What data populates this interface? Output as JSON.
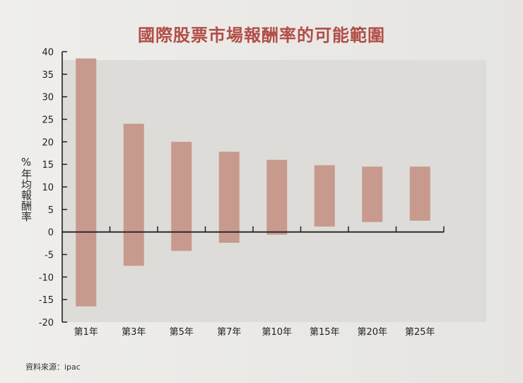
{
  "chart_data": {
    "type": "bar",
    "subtype": "floating-range",
    "title": "國際股票市場報酬率的可能範圍",
    "ylabel": "%年均報酬率",
    "ylim": [
      -20,
      40
    ],
    "yticks": [
      40,
      35,
      30,
      25,
      20,
      15,
      10,
      5,
      0,
      -5,
      -10,
      -15,
      -20
    ],
    "categories": [
      "第1年",
      "第3年",
      "第5年",
      "第7年",
      "第10年",
      "第15年",
      "第20年",
      "第25年"
    ],
    "ranges": [
      {
        "low": -16.5,
        "high": 38.5
      },
      {
        "low": -7.5,
        "high": 24
      },
      {
        "low": -4.2,
        "high": 20
      },
      {
        "low": -2.4,
        "high": 17.8
      },
      {
        "low": -0.6,
        "high": 16
      },
      {
        "low": 1.2,
        "high": 14.8
      },
      {
        "low": 2.2,
        "high": 14.5
      },
      {
        "low": 2.5,
        "high": 14.5
      }
    ],
    "bar_color": "#c79a8d",
    "grid": false,
    "source": "資料來源：ipac"
  }
}
